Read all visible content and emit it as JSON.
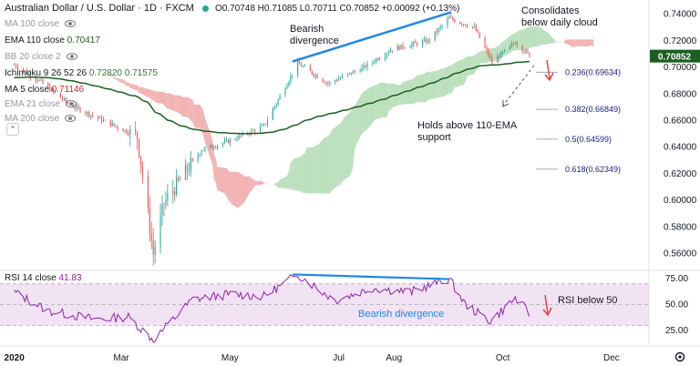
{
  "legend": {
    "symbol": "Australian Dollar / U.S. Dollar · 1D · FXCM",
    "ohlc": "O0.70748 H0.71085 L0.70711 C0.70852 +0.00092 (+0.13%)",
    "indicators": [
      {
        "name": "MA 100 close",
        "value": "",
        "hidden": true
      },
      {
        "name": "EMA 110 close",
        "value": "0.70417",
        "hidden": false
      },
      {
        "name": "BB 20 close 2",
        "value": "",
        "hidden": true
      },
      {
        "name": "Ichimoku 9 26 52 26",
        "value": "0.72820  0.71575",
        "hidden": false
      },
      {
        "name": "MA 5 close",
        "value": "0.71146",
        "hidden": false
      },
      {
        "name": "EMA 21 close",
        "value": "",
        "hidden": true
      },
      {
        "name": "MA 200 close",
        "value": "",
        "hidden": true
      }
    ]
  },
  "annotations": {
    "bearish_top": "Bearish\ndivergence",
    "consolidates": "Consolidates\nbelow daily cloud",
    "holds": "Holds above 110-EMA\nsupport",
    "rsi_div": "Bearish divergence",
    "rsi_below": "RSI below 50"
  },
  "rsi_legend": {
    "name": "RSI 14 close",
    "value": "41.83"
  },
  "colors": {
    "up": "#26a69a",
    "down": "#ef5350",
    "ema": "#1b5e20",
    "cloud_bull": "#a5d6a7",
    "cloud_bear": "#ef9a9a",
    "rsi": "#8e24aa",
    "rsi_band": "#e1bee7",
    "trendline": "#1e88e5",
    "price_tag": "#1b5e20",
    "fib": "#1a237e"
  },
  "chart_data": [
    {
      "type": "candlestick",
      "title": "Australian Dollar / U.S. Dollar · 1D · FXCM",
      "x_ticks": [
        "2020",
        "Mar",
        "May",
        "Jul",
        "Aug",
        "Oct",
        "Dec"
      ],
      "y_ticks": [
        "0.74000",
        "0.72000",
        "0.70000",
        "0.68000",
        "0.66000",
        "0.64000",
        "0.62000",
        "0.60000",
        "0.58000",
        "0.56000"
      ],
      "ylim": [
        0.548,
        0.748
      ],
      "last_price": "0.70852",
      "key_points": [
        {
          "date": "2020-01-01",
          "close": 0.702
        },
        {
          "date": "2020-01-15",
          "close": 0.69
        },
        {
          "date": "2020-02-01",
          "close": 0.672
        },
        {
          "date": "2020-02-20",
          "close": 0.66
        },
        {
          "date": "2020-03-10",
          "close": 0.648
        },
        {
          "date": "2020-03-19",
          "close": 0.56
        },
        {
          "date": "2020-03-25",
          "close": 0.598
        },
        {
          "date": "2020-04-15",
          "close": 0.638
        },
        {
          "date": "2020-05-01",
          "close": 0.645
        },
        {
          "date": "2020-05-20",
          "close": 0.656
        },
        {
          "date": "2020-06-08",
          "close": 0.703
        },
        {
          "date": "2020-06-25",
          "close": 0.688
        },
        {
          "date": "2020-07-15",
          "close": 0.7
        },
        {
          "date": "2020-07-31",
          "close": 0.714
        },
        {
          "date": "2020-08-20",
          "close": 0.72
        },
        {
          "date": "2020-09-01",
          "close": 0.737
        },
        {
          "date": "2020-09-15",
          "close": 0.73
        },
        {
          "date": "2020-09-25",
          "close": 0.704
        },
        {
          "date": "2020-10-08",
          "close": 0.719
        },
        {
          "date": "2020-10-16",
          "close": 0.709
        }
      ],
      "fibonacci": [
        {
          "label": "0.236(0.69634)",
          "value": 0.69634
        },
        {
          "label": "0.382(0.66849)",
          "value": 0.66849
        },
        {
          "label": "0.5(0.64599)",
          "value": 0.64599
        },
        {
          "label": "0.618(0.62349)",
          "value": 0.62349
        }
      ]
    },
    {
      "type": "line",
      "title": "RSI 14 close",
      "y_ticks": [
        "75.00",
        "50.00",
        "25.00"
      ],
      "ylim": [
        12,
        82
      ],
      "band": [
        30,
        70
      ],
      "key_points": [
        {
          "date": "2020-01-01",
          "value": 62
        },
        {
          "date": "2020-01-20",
          "value": 44
        },
        {
          "date": "2020-02-15",
          "value": 36
        },
        {
          "date": "2020-03-05",
          "value": 38
        },
        {
          "date": "2020-03-19",
          "value": 16
        },
        {
          "date": "2020-04-10",
          "value": 55
        },
        {
          "date": "2020-05-01",
          "value": 60
        },
        {
          "date": "2020-05-20",
          "value": 58
        },
        {
          "date": "2020-06-08",
          "value": 79
        },
        {
          "date": "2020-06-29",
          "value": 54
        },
        {
          "date": "2020-07-20",
          "value": 66
        },
        {
          "date": "2020-08-10",
          "value": 62
        },
        {
          "date": "2020-09-01",
          "value": 75
        },
        {
          "date": "2020-09-10",
          "value": 50
        },
        {
          "date": "2020-09-24",
          "value": 34
        },
        {
          "date": "2020-10-08",
          "value": 56
        },
        {
          "date": "2020-10-16",
          "value": 41.83
        }
      ]
    }
  ]
}
